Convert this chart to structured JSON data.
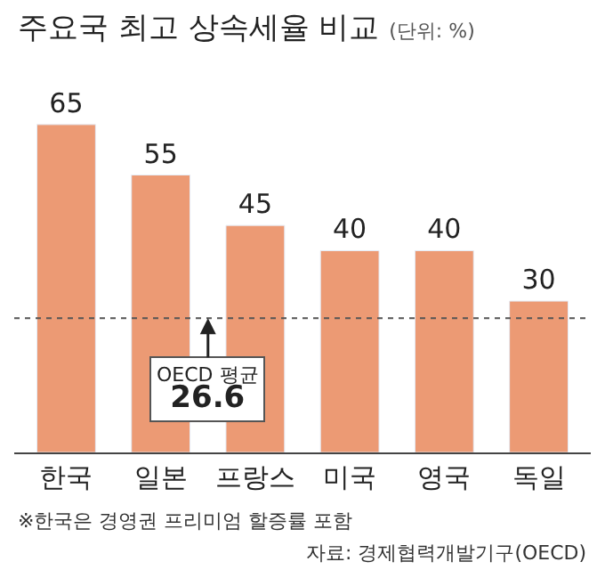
{
  "chart_data": {
    "type": "bar",
    "title": "주요국 최고 상속세율 비교",
    "subtitle": "(단위: %)",
    "categories": [
      "한국",
      "일본",
      "프랑스",
      "미국",
      "영국",
      "독일"
    ],
    "values": [
      65,
      55,
      45,
      40,
      40,
      30
    ],
    "color": "#ec9a74",
    "data_labels": true,
    "legend": false,
    "ref_lines": [
      {
        "axis": "y",
        "value": 26.6,
        "label": "OECD 평균\n26.6",
        "color": "#555555",
        "line_style": "dotted"
      }
    ],
    "annotations": [
      "※한국은 경영권 프리미엄 할증률 포함",
      "자료: 경제협력개발기구(OECD)"
    ]
  }
}
